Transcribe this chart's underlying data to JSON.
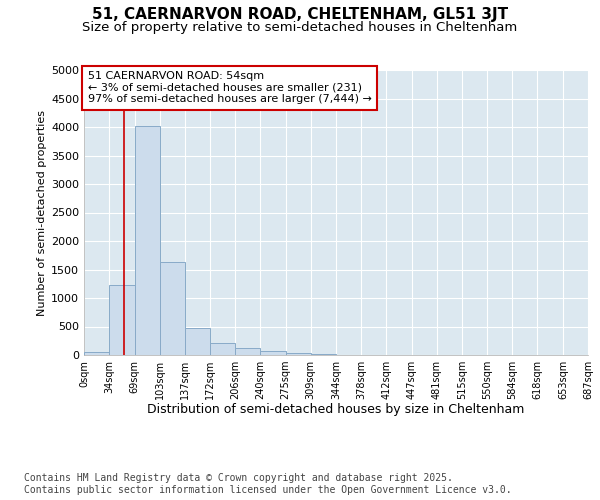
{
  "title": "51, CAERNARVON ROAD, CHELTENHAM, GL51 3JT",
  "subtitle": "Size of property relative to semi-detached houses in Cheltenham",
  "xlabel": "Distribution of semi-detached houses by size in Cheltenham",
  "ylabel": "Number of semi-detached properties",
  "bins": [
    "0sqm",
    "34sqm",
    "69sqm",
    "103sqm",
    "137sqm",
    "172sqm",
    "206sqm",
    "240sqm",
    "275sqm",
    "309sqm",
    "344sqm",
    "378sqm",
    "412sqm",
    "447sqm",
    "481sqm",
    "515sqm",
    "550sqm",
    "584sqm",
    "618sqm",
    "653sqm",
    "687sqm"
  ],
  "bin_edges": [
    0,
    34,
    69,
    103,
    137,
    172,
    206,
    240,
    275,
    309,
    344,
    378,
    412,
    447,
    481,
    515,
    550,
    584,
    618,
    653,
    687
  ],
  "bar_heights": [
    60,
    1230,
    4020,
    1630,
    480,
    210,
    130,
    70,
    40,
    20,
    8,
    4,
    2,
    1,
    1,
    0,
    0,
    0,
    0,
    0
  ],
  "bar_color": "#ccdcec",
  "bar_edgecolor": "#88aac8",
  "property_size": 54,
  "property_line_color": "#cc0000",
  "annotation_text": "51 CAERNARVON ROAD: 54sqm\n← 3% of semi-detached houses are smaller (231)\n97% of semi-detached houses are larger (7,444) →",
  "annotation_boxcolor": "#ffffff",
  "annotation_edgecolor": "#cc0000",
  "ylim": [
    0,
    5000
  ],
  "yticks": [
    0,
    500,
    1000,
    1500,
    2000,
    2500,
    3000,
    3500,
    4000,
    4500,
    5000
  ],
  "background_color": "#ffffff",
  "plot_background": "#dce8f0",
  "grid_color": "#ffffff",
  "footer": "Contains HM Land Registry data © Crown copyright and database right 2025.\nContains public sector information licensed under the Open Government Licence v3.0.",
  "title_fontsize": 11,
  "subtitle_fontsize": 9.5,
  "footer_fontsize": 7,
  "ylabel_fontsize": 8,
  "xlabel_fontsize": 9,
  "annotation_fontsize": 8
}
